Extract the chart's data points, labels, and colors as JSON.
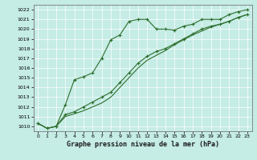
{
  "title": "Graphe pression niveau de la mer (hPa)",
  "bg_color": "#c5ece5",
  "plot_bg_color": "#c5ece5",
  "line_color": "#2d6e2d",
  "ylim": [
    1009.5,
    1022.5
  ],
  "xlim": [
    -0.5,
    23.5
  ],
  "yticks": [
    1010,
    1011,
    1012,
    1013,
    1014,
    1015,
    1016,
    1017,
    1018,
    1019,
    1020,
    1021,
    1022
  ],
  "xticks": [
    0,
    1,
    2,
    3,
    4,
    5,
    6,
    7,
    8,
    9,
    10,
    11,
    12,
    13,
    14,
    15,
    16,
    17,
    18,
    19,
    20,
    21,
    22,
    23
  ],
  "series1_x": [
    0,
    1,
    2,
    3,
    4,
    5,
    6,
    7,
    8,
    9,
    10,
    11,
    12,
    13,
    14,
    15,
    16,
    17,
    18,
    19,
    20,
    21,
    22,
    23
  ],
  "series1_y": [
    1010.3,
    1009.8,
    1010.0,
    1012.2,
    1014.8,
    1015.1,
    1015.5,
    1017.0,
    1018.9,
    1019.4,
    1020.8,
    1021.0,
    1021.0,
    1020.0,
    1020.0,
    1019.9,
    1020.3,
    1020.5,
    1021.0,
    1021.0,
    1021.0,
    1021.5,
    1021.8,
    1022.0
  ],
  "series2_x": [
    0,
    1,
    2,
    3,
    4,
    5,
    6,
    7,
    8,
    9,
    10,
    11,
    12,
    13,
    14,
    15,
    16,
    17,
    18,
    19,
    20,
    21,
    22,
    23
  ],
  "series2_y": [
    1010.3,
    1009.8,
    1010.0,
    1011.2,
    1011.5,
    1012.0,
    1012.5,
    1013.0,
    1013.5,
    1014.5,
    1015.5,
    1016.5,
    1017.2,
    1017.7,
    1018.0,
    1018.5,
    1019.0,
    1019.5,
    1020.0,
    1020.3,
    1020.5,
    1020.8,
    1021.2,
    1021.5
  ],
  "series3_x": [
    0,
    1,
    2,
    3,
    4,
    5,
    6,
    7,
    8,
    9,
    10,
    11,
    12,
    13,
    14,
    15,
    16,
    17,
    18,
    19,
    20,
    21,
    22,
    23
  ],
  "series3_y": [
    1010.3,
    1009.8,
    1010.0,
    1011.0,
    1011.3,
    1011.6,
    1012.0,
    1012.4,
    1013.0,
    1014.0,
    1015.0,
    1016.0,
    1016.8,
    1017.3,
    1017.8,
    1018.4,
    1018.9,
    1019.4,
    1019.8,
    1020.2,
    1020.5,
    1020.8,
    1021.2,
    1021.5
  ],
  "ylabel_fontsize": 5,
  "xlabel_fontsize": 5,
  "title_fontsize": 6,
  "tick_labelsize": 4.5,
  "linewidth": 0.8,
  "markersize": 3.5,
  "grid_color": "#ffffff",
  "grid_linewidth": 0.5,
  "spine_color": "#666666"
}
